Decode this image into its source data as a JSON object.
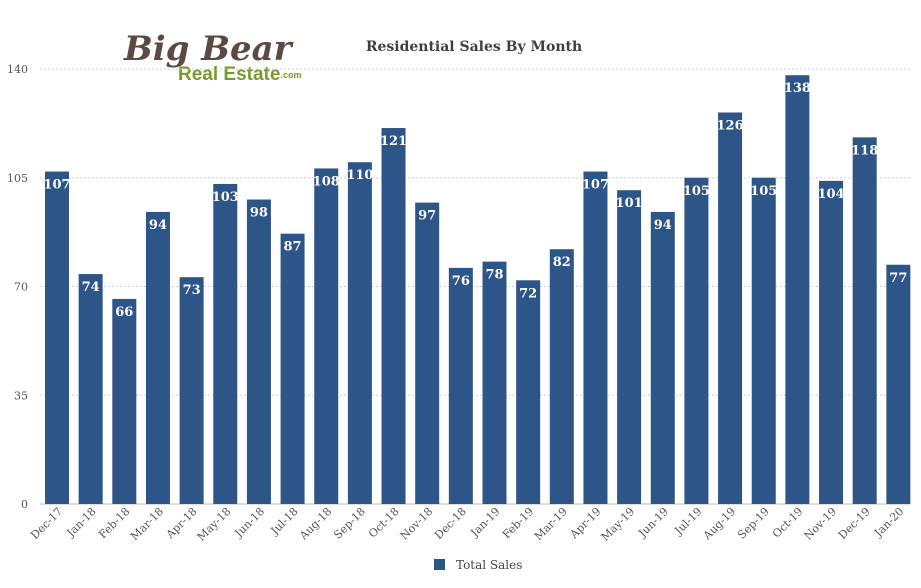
{
  "logo": {
    "line1": "Big Bear",
    "line2": "Real Estate",
    "suffix": ".com",
    "color_dark": "#5a4a42",
    "color_green": "#7a9a2a"
  },
  "chart_data": {
    "type": "bar",
    "title": "Residential Sales By Month",
    "categories": [
      "Dec-17",
      "Jan-18",
      "Feb-18",
      "Mar-18",
      "Apr-18",
      "May-18",
      "Jun-18",
      "Jul-18",
      "Aug-18",
      "Sep-18",
      "Oct-18",
      "Nov-18",
      "Dec-18",
      "Jan-19",
      "Feb-19",
      "Mar-19",
      "Apr-19",
      "May-19",
      "Jun-19",
      "Jul-19",
      "Aug-19",
      "Sep-19",
      "Oct-19",
      "Nov-19",
      "Dec-19",
      "Jan-20"
    ],
    "series": [
      {
        "name": "Total Sales",
        "color": "#2e5587",
        "values": [
          107,
          74,
          66,
          94,
          73,
          103,
          98,
          87,
          108,
          110,
          121,
          97,
          76,
          78,
          72,
          82,
          107,
          101,
          94,
          105,
          126,
          105,
          138,
          104,
          118,
          77
        ]
      }
    ],
    "ylim": [
      0,
      140
    ],
    "yticks": [
      0,
      35,
      70,
      105,
      140
    ],
    "xlabel": "",
    "ylabel": "",
    "grid": true,
    "legend_position": "bottom"
  }
}
